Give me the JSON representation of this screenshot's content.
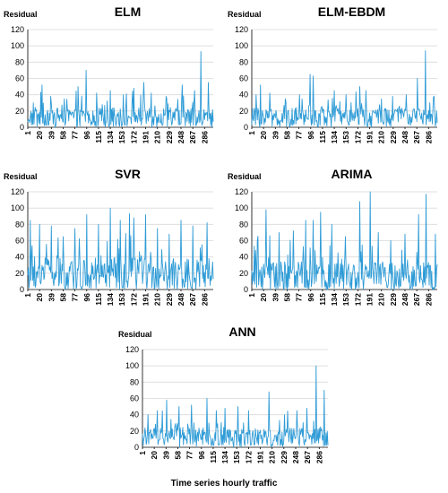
{
  "figure": {
    "caption": "Time series hourly traffic",
    "line_color": "#2e9bd6"
  },
  "chart_data": [
    {
      "type": "line",
      "title": "ELM",
      "ylabel": "Residual",
      "ylim": [
        0,
        120
      ],
      "yticks": [
        0,
        20,
        40,
        60,
        80,
        100,
        120
      ],
      "xticks": [
        1,
        20,
        39,
        58,
        77,
        96,
        115,
        134,
        153,
        172,
        191,
        210,
        229,
        248,
        267,
        286
      ],
      "x_range": [
        1,
        300
      ],
      "grid": "horizontal",
      "legend": "none",
      "series": [
        {
          "peaks": [
            [
              10,
              30
            ],
            [
              24,
              52
            ],
            [
              38,
              38
            ],
            [
              60,
              35
            ],
            [
              82,
              50
            ],
            [
              95,
              70
            ],
            [
              112,
              42
            ],
            [
              134,
              45
            ],
            [
              155,
              40
            ],
            [
              172,
              48
            ],
            [
              188,
              55
            ],
            [
              200,
              42
            ],
            [
              225,
              35
            ],
            [
              250,
              52
            ],
            [
              270,
              45
            ],
            [
              280,
              93
            ],
            [
              292,
              55
            ]
          ]
        }
      ]
    },
    {
      "type": "line",
      "title": "ELM-EBDM",
      "ylabel": "Residual",
      "ylim": [
        0,
        120
      ],
      "yticks": [
        0,
        20,
        40,
        60,
        80,
        100,
        120
      ],
      "xticks": [
        1,
        20,
        39,
        58,
        77,
        96,
        115,
        134,
        153,
        172,
        191,
        210,
        229,
        248,
        267,
        286
      ],
      "x_range": [
        1,
        300
      ],
      "grid": "horizontal",
      "legend": "none",
      "series": [
        {
          "peaks": [
            [
              8,
              40
            ],
            [
              15,
              52
            ],
            [
              30,
              42
            ],
            [
              55,
              35
            ],
            [
              78,
              40
            ],
            [
              95,
              65
            ],
            [
              100,
              63
            ],
            [
              134,
              45
            ],
            [
              153,
              40
            ],
            [
              175,
              50
            ],
            [
              185,
              45
            ],
            [
              210,
              35
            ],
            [
              228,
              38
            ],
            [
              250,
              40
            ],
            [
              268,
              60
            ],
            [
              281,
              94
            ],
            [
              295,
              38
            ]
          ]
        }
      ]
    },
    {
      "type": "line",
      "title": "SVR",
      "ylabel": "Residual",
      "ylim": [
        0,
        120
      ],
      "yticks": [
        0,
        20,
        40,
        60,
        80,
        100,
        120
      ],
      "xticks": [
        1,
        20,
        39,
        58,
        77,
        96,
        115,
        134,
        153,
        172,
        191,
        210,
        229,
        248,
        267,
        286
      ],
      "x_range": [
        1,
        300
      ],
      "grid": "horizontal",
      "legend": "none",
      "series": [
        {
          "peaks": [
            [
              5,
              85
            ],
            [
              20,
              80
            ],
            [
              39,
              78
            ],
            [
              58,
              65
            ],
            [
              77,
              75
            ],
            [
              96,
              92
            ],
            [
              115,
              80
            ],
            [
              134,
              100
            ],
            [
              150,
              85
            ],
            [
              165,
              93
            ],
            [
              172,
              88
            ],
            [
              191,
              92
            ],
            [
              210,
              75
            ],
            [
              229,
              68
            ],
            [
              248,
              85
            ],
            [
              267,
              78
            ],
            [
              290,
              82
            ]
          ]
        }
      ]
    },
    {
      "type": "line",
      "title": "ARIMA",
      "ylabel": "Residual",
      "ylim": [
        0,
        120
      ],
      "yticks": [
        0,
        20,
        40,
        60,
        80,
        100,
        120
      ],
      "xticks": [
        1,
        20,
        39,
        58,
        77,
        96,
        115,
        134,
        153,
        172,
        191,
        210,
        229,
        248,
        267,
        286
      ],
      "x_range": [
        1,
        300
      ],
      "grid": "horizontal",
      "legend": "none",
      "series": [
        {
          "peaks": [
            [
              10,
              60
            ],
            [
              24,
              98
            ],
            [
              45,
              70
            ],
            [
              68,
              72
            ],
            [
              88,
              85
            ],
            [
              100,
              85
            ],
            [
              112,
              95
            ],
            [
              130,
              80
            ],
            [
              152,
              65
            ],
            [
              175,
              108
            ],
            [
              192,
              120
            ],
            [
              205,
              70
            ],
            [
              225,
              60
            ],
            [
              248,
              68
            ],
            [
              270,
              92
            ],
            [
              282,
              117
            ],
            [
              297,
              68
            ]
          ]
        }
      ]
    },
    {
      "type": "line",
      "title": "ANN",
      "ylabel": "Residual",
      "ylim": [
        0,
        120
      ],
      "yticks": [
        0,
        20,
        40,
        60,
        80,
        100,
        120
      ],
      "xticks": [
        1,
        20,
        39,
        58,
        77,
        96,
        115,
        134,
        153,
        172,
        191,
        210,
        229,
        248,
        267,
        286
      ],
      "x_range": [
        1,
        300
      ],
      "grid": "horizontal",
      "legend": "none",
      "series": [
        {
          "peaks": [
            [
              10,
              40
            ],
            [
              25,
              45
            ],
            [
              40,
              58
            ],
            [
              60,
              50
            ],
            [
              80,
              52
            ],
            [
              105,
              60
            ],
            [
              120,
              45
            ],
            [
              134,
              48
            ],
            [
              155,
              50
            ],
            [
              172,
              45
            ],
            [
              205,
              68
            ],
            [
              230,
              40
            ],
            [
              250,
              45
            ],
            [
              266,
              48
            ],
            [
              281,
              100
            ],
            [
              294,
              70
            ]
          ]
        }
      ]
    }
  ]
}
